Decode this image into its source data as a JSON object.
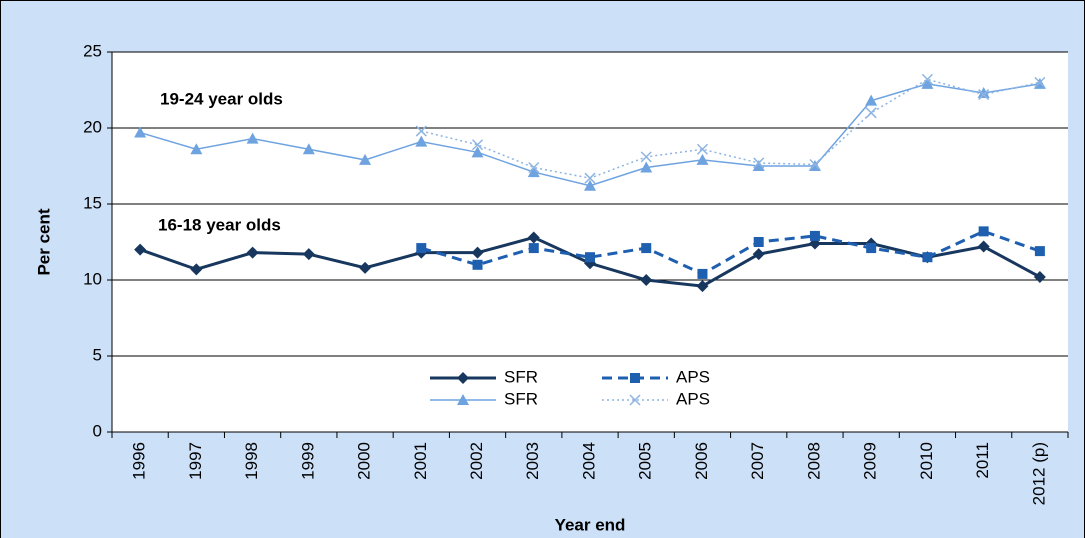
{
  "chart_data": {
    "type": "line",
    "x_label": "Year end",
    "y_label": "Per cent",
    "annotations": [
      "19-24 year olds",
      "16-18 year olds"
    ],
    "categories": [
      "1996",
      "1997",
      "1998",
      "1999",
      "2000",
      "2001",
      "2002",
      "2003",
      "2004",
      "2005",
      "2006",
      "2007",
      "2008",
      "2009",
      "2010",
      "2011",
      "2012 (p)"
    ],
    "series": [
      {
        "name": "SFR",
        "color": "#17375e",
        "marker": "diamond",
        "dash": "solid",
        "values": [
          12.0,
          10.7,
          11.8,
          11.7,
          10.8,
          11.8,
          11.8,
          12.8,
          11.1,
          10.0,
          9.6,
          11.7,
          12.4,
          12.4,
          11.5,
          12.2,
          10.2
        ]
      },
      {
        "name": "APS",
        "color": "#1f5fb0",
        "marker": "square",
        "dash": "dashed",
        "values": [
          null,
          null,
          null,
          null,
          null,
          12.1,
          11.0,
          12.1,
          11.5,
          12.1,
          10.4,
          12.5,
          12.9,
          12.1,
          11.5,
          13.2,
          11.9
        ]
      },
      {
        "name": "SFR",
        "color": "#6fa3e0",
        "marker": "triangle",
        "dash": "solid",
        "values": [
          19.7,
          18.6,
          19.3,
          18.6,
          17.9,
          19.1,
          18.4,
          17.1,
          16.2,
          17.4,
          17.9,
          17.5,
          17.5,
          21.8,
          22.9,
          22.3,
          22.9
        ]
      },
      {
        "name": "APS",
        "color": "#8db4e2",
        "marker": "x",
        "dash": "dotted",
        "values": [
          null,
          null,
          null,
          null,
          null,
          19.8,
          18.9,
          17.4,
          16.7,
          18.1,
          18.6,
          17.7,
          17.6,
          21.0,
          23.2,
          22.2,
          23.0
        ]
      }
    ],
    "ylim": [
      0,
      25
    ],
    "yticks": [
      0,
      5,
      10,
      15,
      20,
      25
    ],
    "grid": true
  }
}
